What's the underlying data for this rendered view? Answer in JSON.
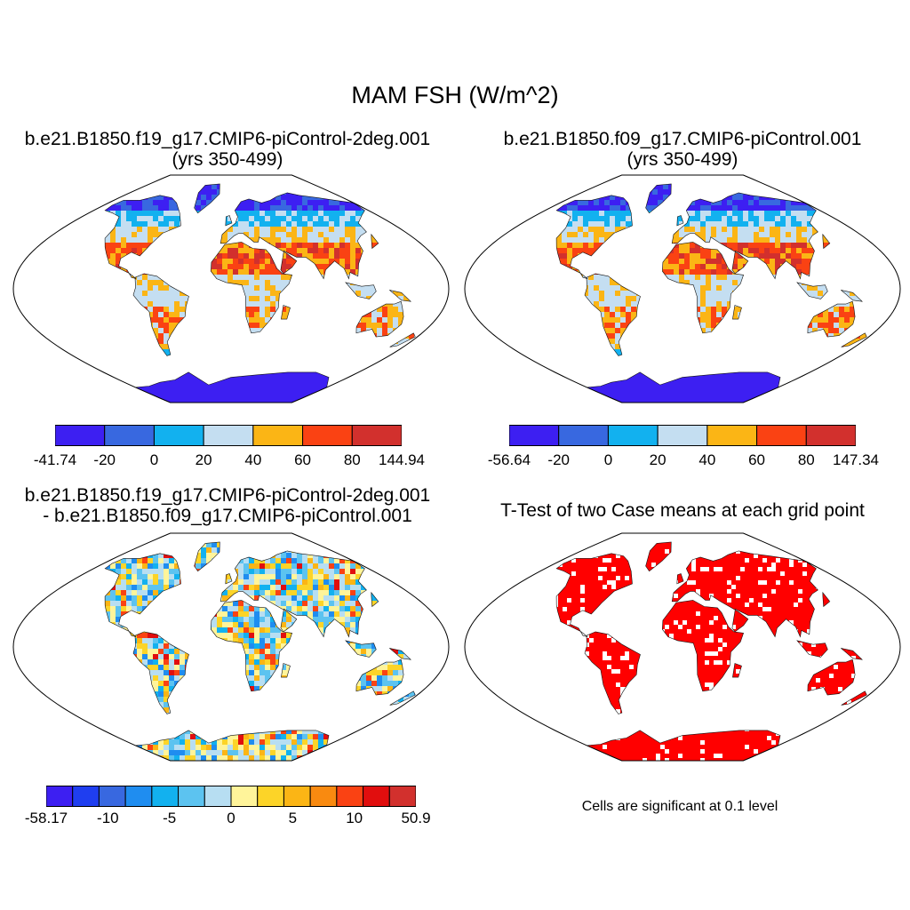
{
  "title": "MAM FSH (W/m^2)",
  "panels": {
    "p1": {
      "title_line1": "b.e21.B1850.f19_g17.CMIP6-piControl-2deg.001",
      "title_line2": "(yrs 350-499)"
    },
    "p2": {
      "title_line1": "b.e21.B1850.f09_g17.CMIP6-piControl.001",
      "title_line2": "(yrs 350-499)"
    },
    "p3": {
      "title_line1": "b.e21.B1850.f19_g17.CMIP6-piControl-2deg.001",
      "title_line2": "- b.e21.B1850.f09_g17.CMIP6-piControl.001"
    },
    "p4": {
      "title_line1": "T-Test of two Case means at each grid point"
    }
  },
  "colorbars": {
    "cb1": {
      "colors": [
        "#3d1ff2",
        "#3868e0",
        "#12b1ef",
        "#c4def1",
        "#fbb515",
        "#fa4213",
        "#d2302d"
      ],
      "labels": [
        "-41.74",
        "-20",
        "0",
        "20",
        "40",
        "60",
        "80",
        "144.94"
      ]
    },
    "cb2": {
      "colors": [
        "#3d1ff2",
        "#3868e0",
        "#12b1ef",
        "#c4def1",
        "#fbb515",
        "#fa4213",
        "#d2302d"
      ],
      "labels": [
        "-56.64",
        "-20",
        "0",
        "20",
        "40",
        "60",
        "80",
        "147.34"
      ]
    },
    "cb3": {
      "colors": [
        "#3d1ff2",
        "#1f3ef0",
        "#3868e0",
        "#1f8df0",
        "#12b1ef",
        "#5cc3f0",
        "#b7def2",
        "#fff49a",
        "#fcd428",
        "#fbb515",
        "#f98a10",
        "#fa4213",
        "#e10e0e",
        "#d2302d"
      ],
      "labels": [
        "-58.17",
        "-10",
        "-5",
        "0",
        "5",
        "10",
        "50.9"
      ]
    }
  },
  "significance_color": "#ff0000",
  "footnote": "Cells are significant at 0.1 level"
}
